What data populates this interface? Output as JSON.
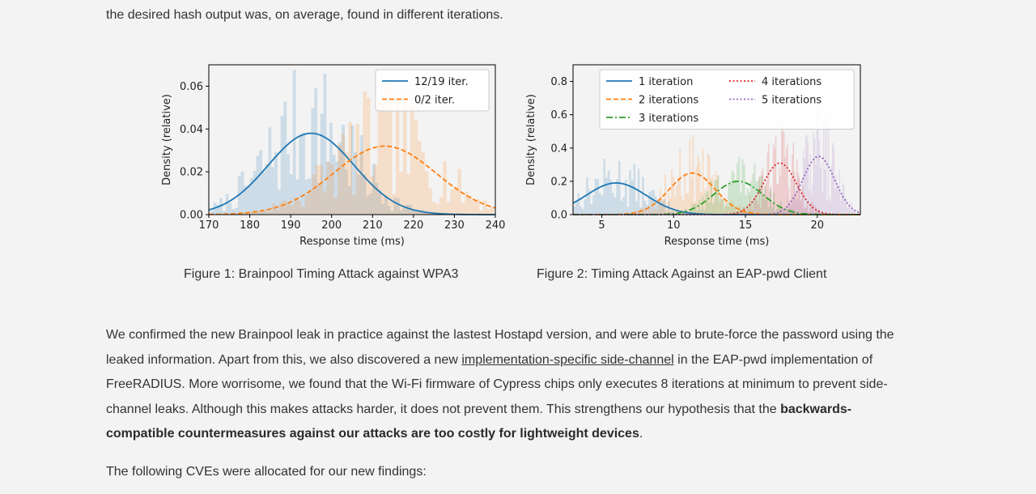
{
  "intro": {
    "text": "the desired hash output was, on average, found in different iterations."
  },
  "figure1": {
    "caption": "Figure 1: Brainpool Timing Attack against WPA3",
    "chart_data": {
      "type": "line",
      "title": "",
      "xlabel": "Response time (ms)",
      "ylabel": "Density (relative)",
      "xlim": [
        170,
        240
      ],
      "ylim": [
        0,
        0.07
      ],
      "xticks": [
        "170",
        "180",
        "190",
        "200",
        "210",
        "220",
        "230",
        "240"
      ],
      "yticks": [
        "0.00",
        "0.02",
        "0.04",
        "0.06"
      ],
      "legend_position": "top-right",
      "series": [
        {
          "name": "12/19 iter.",
          "style": "solid",
          "color": "#1f77b4",
          "mean": 195,
          "sd": 10.5,
          "peak": 0.038
        },
        {
          "name": "0/2 iter.",
          "style": "dashed",
          "color": "#ff7f0e",
          "mean": 213,
          "sd": 12.5,
          "peak": 0.032
        }
      ]
    }
  },
  "figure2": {
    "caption": "Figure 2: Timing Attack Against an EAP-pwd Client",
    "chart_data": {
      "type": "line",
      "title": "",
      "xlabel": "Response time (ms)",
      "ylabel": "Density (relative)",
      "xlim": [
        3,
        23
      ],
      "ylim": [
        0,
        0.9
      ],
      "xticks": [
        "5",
        "10",
        "15",
        "20"
      ],
      "yticks": [
        "0.0",
        "0.2",
        "0.4",
        "0.6",
        "0.8"
      ],
      "legend_position": "top, two columns",
      "series": [
        {
          "name": "1 iteration",
          "style": "solid",
          "color": "#1f77b4",
          "mean": 6.0,
          "sd": 2.1,
          "peak": 0.19
        },
        {
          "name": "2 iterations",
          "style": "dashed",
          "color": "#ff7f0e",
          "mean": 11.3,
          "sd": 1.6,
          "peak": 0.25
        },
        {
          "name": "3 iterations",
          "style": "dashdot",
          "color": "#2ca02c",
          "mean": 14.5,
          "sd": 1.7,
          "peak": 0.2
        },
        {
          "name": "4 iterations",
          "style": "dotted",
          "color": "#d62728",
          "mean": 17.4,
          "sd": 1.15,
          "peak": 0.31
        },
        {
          "name": "5 iterations",
          "style": "dotted",
          "color": "#9467bd",
          "mean": 20.1,
          "sd": 1.1,
          "peak": 0.35
        }
      ]
    }
  },
  "body": {
    "t1": "We confirmed the new Brainpool leak in practice against the lastest Hostapd version, and were able to brute-force the password using the leaked information. Apart from this, we also discovered a new ",
    "link": "implementation-specific side-channel",
    "t2": " in the EAP-pwd implementation of FreeRADIUS. More worrisome, we found that the Wi-Fi firmware of Cypress chips only executes 8 iterations at minimum to prevent side-channel leaks. Although this makes attacks harder, it does not prevent them. This strengthens our hypothesis that the ",
    "bold": "backwards-compatible countermeasures against our attacks are too costly for lightweight devices",
    "t3": "."
  },
  "cve_intro": {
    "text": "The following CVEs were allocated for our new findings:"
  }
}
